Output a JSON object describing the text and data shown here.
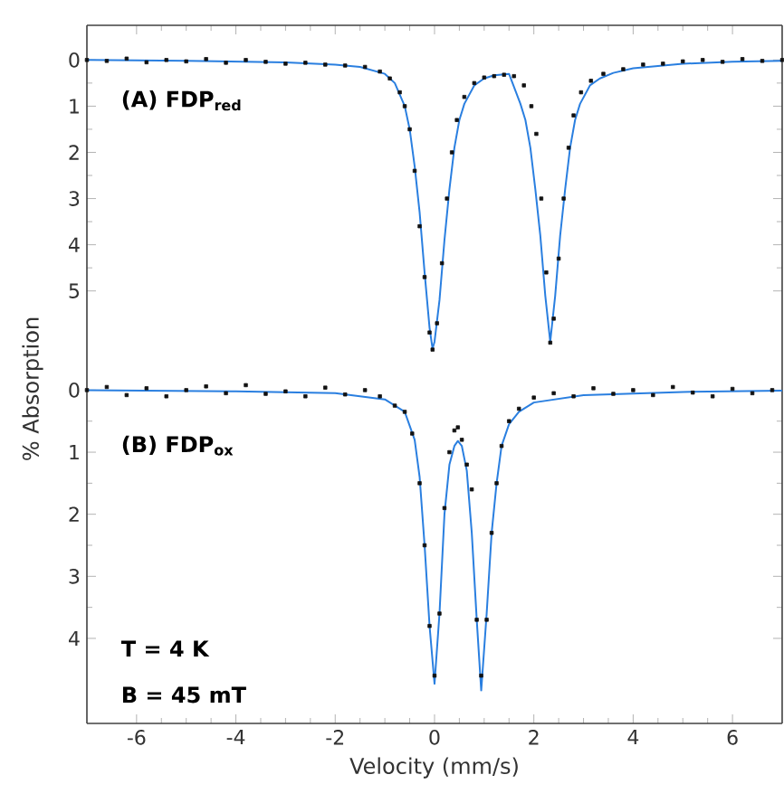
{
  "chart_data": [
    {
      "type": "line",
      "annotations": [
        "(A) FDP$_{red}$"
      ],
      "xlim": [
        -7,
        7
      ],
      "xticks": [
        -6,
        -4,
        -2,
        0,
        2,
        4,
        6
      ],
      "ylim": [
        6.65,
        -0.75
      ],
      "yticks": [
        0,
        1,
        2,
        3,
        4,
        5
      ],
      "tick_labels": "y",
      "series": [
        {
          "type": "scatter",
          "color": "#111111",
          "marker": "square",
          "x": [
            -7,
            -6.6,
            -6.2,
            -5.8,
            -5.4,
            -5,
            -4.6,
            -4.2,
            -3.8,
            -3.4,
            -3,
            -2.6,
            -2.2,
            -1.8,
            -1.4,
            -1.1,
            -0.9,
            -0.7,
            -0.6,
            -0.5,
            -0.4,
            -0.3,
            -0.2,
            -0.1,
            -0.04,
            0.05,
            0.15,
            0.25,
            0.35,
            0.45,
            0.6,
            0.8,
            1.0,
            1.2,
            1.4,
            1.6,
            1.8,
            1.95,
            2.05,
            2.15,
            2.25,
            2.33,
            2.4,
            2.5,
            2.6,
            2.7,
            2.8,
            2.95,
            3.15,
            3.4,
            3.8,
            4.2,
            4.6,
            5,
            5.4,
            5.8,
            6.2,
            6.6,
            7
          ],
          "values": [
            0,
            0.02,
            -0.03,
            0.05,
            0.0,
            0.03,
            -0.02,
            0.06,
            0.0,
            0.04,
            0.08,
            0.06,
            0.1,
            0.12,
            0.15,
            0.25,
            0.4,
            0.7,
            1.0,
            1.5,
            2.4,
            3.6,
            4.7,
            5.9,
            6.27,
            5.7,
            4.4,
            3.0,
            2.0,
            1.3,
            0.8,
            0.5,
            0.38,
            0.35,
            0.32,
            0.35,
            0.55,
            1.0,
            1.6,
            3.0,
            4.6,
            6.12,
            5.6,
            4.3,
            3.0,
            1.9,
            1.2,
            0.7,
            0.45,
            0.3,
            0.2,
            0.1,
            0.08,
            0.03,
            0.0,
            0.04,
            -0.02,
            0.02,
            0.0
          ]
        },
        {
          "color": "#2a7fe0",
          "x": [
            -7,
            -5,
            -3,
            -2,
            -1.5,
            -1,
            -0.8,
            -0.6,
            -0.5,
            -0.4,
            -0.3,
            -0.2,
            -0.1,
            -0.04,
            0,
            0.1,
            0.2,
            0.3,
            0.4,
            0.5,
            0.6,
            0.8,
            1.0,
            1.2,
            1.5,
            1.73,
            1.83,
            1.93,
            2.03,
            2.13,
            2.23,
            2.33,
            2.43,
            2.53,
            2.63,
            2.73,
            2.83,
            2.93,
            3.13,
            3.33,
            3.6,
            4,
            5,
            6,
            7
          ],
          "values": [
            0,
            0.02,
            0.05,
            0.1,
            0.15,
            0.3,
            0.5,
            1.0,
            1.5,
            2.3,
            3.3,
            4.6,
            5.8,
            6.25,
            6.1,
            5.2,
            3.9,
            2.8,
            1.9,
            1.3,
            0.95,
            0.55,
            0.4,
            0.33,
            0.3,
            0.95,
            1.3,
            1.9,
            2.8,
            3.8,
            5.1,
            6.1,
            5.1,
            3.8,
            2.8,
            1.9,
            1.3,
            0.95,
            0.55,
            0.4,
            0.28,
            0.18,
            0.08,
            0.04,
            0.02
          ]
        }
      ]
    },
    {
      "type": "line",
      "annotations": [
        "(B) FDP$_{ox}$",
        "T = 4 K",
        "B = 45 mT"
      ],
      "xlabel": "Velocity (mm/s)",
      "ylabel": "% Absorption",
      "xlim": [
        -7,
        7
      ],
      "xticks": [
        -6,
        -4,
        -2,
        0,
        2,
        4,
        6
      ],
      "ylim": [
        5.37,
        -0.37
      ],
      "yticks": [
        0,
        1,
        2,
        3,
        4
      ],
      "series": [
        {
          "type": "scatter",
          "color": "#111111",
          "marker": "square",
          "x": [
            -7,
            -6.6,
            -6.2,
            -5.8,
            -5.4,
            -5,
            -4.6,
            -4.2,
            -3.8,
            -3.4,
            -3,
            -2.6,
            -2.2,
            -1.8,
            -1.4,
            -1.1,
            -0.8,
            -0.6,
            -0.45,
            -0.3,
            -0.2,
            -0.1,
            0,
            0.1,
            0.2,
            0.3,
            0.4,
            0.47,
            0.55,
            0.65,
            0.75,
            0.85,
            0.94,
            1.05,
            1.15,
            1.25,
            1.35,
            1.5,
            1.7,
            2,
            2.4,
            2.8,
            3.2,
            3.6,
            4,
            4.4,
            4.8,
            5.2,
            5.6,
            6,
            6.4,
            6.8
          ],
          "values": [
            0,
            -0.05,
            0.08,
            -0.03,
            0.1,
            0.0,
            -0.06,
            0.05,
            -0.08,
            0.06,
            0.02,
            0.1,
            -0.04,
            0.07,
            0.0,
            0.1,
            0.25,
            0.35,
            0.7,
            1.5,
            2.5,
            3.8,
            4.6,
            3.6,
            1.9,
            1.0,
            0.65,
            0.6,
            0.8,
            1.2,
            1.6,
            3.7,
            4.6,
            3.7,
            2.3,
            1.5,
            0.9,
            0.5,
            0.3,
            0.12,
            0.05,
            0.1,
            -0.03,
            0.06,
            0.0,
            0.08,
            -0.05,
            0.04,
            0.1,
            -0.02,
            0.05,
            0.0
          ]
        },
        {
          "color": "#2a7fe0",
          "x": [
            -7,
            -4,
            -2,
            -1,
            -0.6,
            -0.4,
            -0.3,
            -0.2,
            -0.1,
            0,
            0.1,
            0.2,
            0.3,
            0.4,
            0.47,
            0.55,
            0.65,
            0.75,
            0.85,
            0.94,
            1.05,
            1.15,
            1.25,
            1.35,
            1.5,
            1.7,
            2,
            3,
            5,
            7
          ],
          "values": [
            0,
            0.02,
            0.05,
            0.15,
            0.35,
            0.8,
            1.4,
            2.5,
            3.8,
            4.73,
            3.6,
            2.0,
            1.2,
            0.9,
            0.82,
            0.9,
            1.3,
            2.3,
            3.7,
            4.84,
            3.6,
            2.3,
            1.5,
            0.9,
            0.55,
            0.35,
            0.2,
            0.08,
            0.03,
            0.01
          ]
        }
      ]
    }
  ]
}
